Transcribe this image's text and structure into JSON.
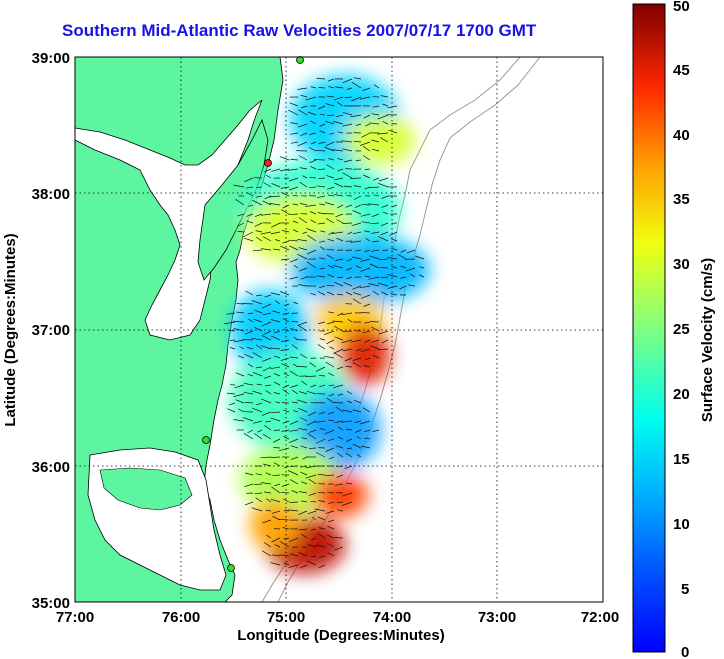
{
  "map": {
    "title": "Southern Mid-Atlantic Raw Velocities 2007/07/17 1700 GMT",
    "x_axis_label": "Longitude (Degrees:Minutes)",
    "y_axis_label": "Latitude (Degrees:Minutes)",
    "lon_range": [
      -77,
      -72
    ],
    "lat_range": [
      35,
      39
    ],
    "lon_ticks": [
      "77:00",
      "76:00",
      "75:00",
      "74:00",
      "73:00",
      "72:00"
    ],
    "lat_ticks": [
      "39:00",
      "38:00",
      "37:00",
      "36:00",
      "35:00"
    ],
    "grid": "dotted",
    "land_color": "#5ef5a0",
    "coastline_color": "#000000",
    "bathymetry_color": "#9a9a9a",
    "station_color": "#2ee02e",
    "colorbar": {
      "label": "Surface Velocity (cm/s)",
      "range": [
        0,
        50
      ],
      "tick_labels": [
        "0",
        "5",
        "10",
        "15",
        "20",
        "25",
        "30",
        "35",
        "40",
        "45",
        "50"
      ],
      "colormap": "jet",
      "placement": "right"
    }
  }
}
